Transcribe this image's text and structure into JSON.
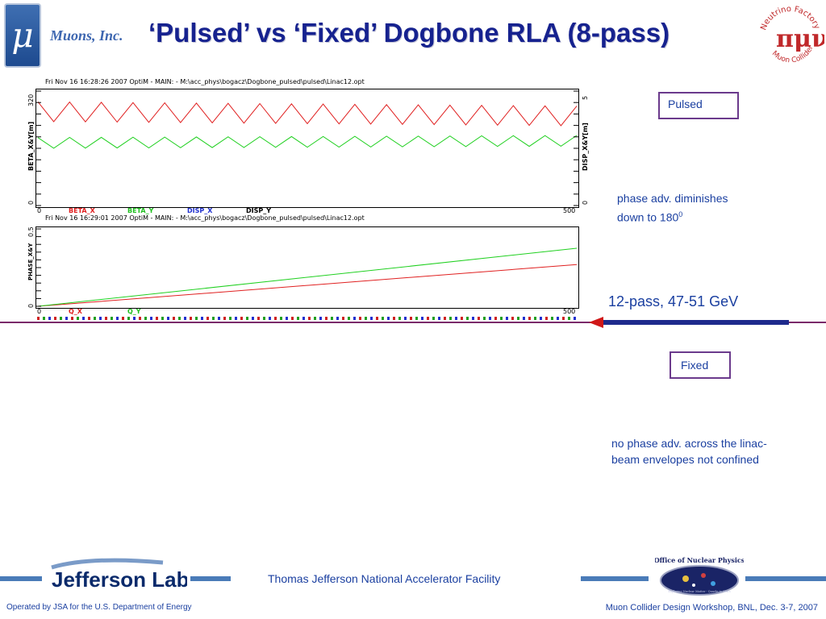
{
  "header": {
    "logo_glyph": "μ",
    "company": "Muons, Inc.",
    "title": "‘Pulsed’ vs ‘Fixed’ Dogbone RLA (8-pass)",
    "partner_logo": {
      "top_text": "Neutrino Factory",
      "bottom_text": "Muon Collider",
      "glyphs": "πμν"
    }
  },
  "plots": {
    "top": {
      "header": "Fri Nov 16 16:28:26 2007    OptiM - MAIN: - M:\\acc_phys\\bogacz\\Dogbone_pulsed\\pulsed\\Linac12.opt",
      "left_axis_label": "BETA_X&Y[m]",
      "right_axis_label": "DISP_X&Y[m]",
      "left_ticks": [
        "320",
        "0"
      ],
      "right_ticks": [
        "5",
        "0"
      ],
      "x_ticks": [
        "0",
        "500"
      ],
      "legend": [
        "BETA_X",
        "BETA_Y",
        "DISP_X",
        "DISP_Y"
      ]
    },
    "bottom": {
      "header": "Fri Nov 16 16:29:01 2007    OptiM - MAIN: - M:\\acc_phys\\bogacz\\Dogbone_pulsed\\pulsed\\Linac12.opt",
      "left_axis_label": "PHASE_X&Y",
      "left_ticks": [
        "0.5",
        "0"
      ],
      "x_ticks": [
        "0",
        "500"
      ],
      "legend": [
        "Q_X",
        "Q_Y"
      ]
    }
  },
  "chart_data": [
    {
      "type": "line",
      "x": [
        0,
        500
      ],
      "xlim": [
        0,
        500
      ],
      "ylim": [
        0,
        320
      ],
      "y2lim": [
        0,
        5
      ],
      "series": [
        {
          "name": "BETA_X",
          "color": "#e02020",
          "shape": "zigzag",
          "teeth": 17,
          "y_range": [
            235,
            290
          ],
          "trend": "slight-decrease"
        },
        {
          "name": "BETA_Y",
          "color": "#20d020",
          "shape": "zigzag",
          "teeth": 17,
          "y_range": [
            160,
            190
          ],
          "trend": "slight-increase"
        },
        {
          "name": "DISP_X",
          "color": "#2030d0"
        },
        {
          "name": "DISP_Y",
          "color": "#000000"
        }
      ],
      "grid": false
    },
    {
      "type": "line",
      "x": [
        0,
        500
      ],
      "xlim": [
        0,
        500
      ],
      "ylim": [
        0,
        0.5
      ],
      "series": [
        {
          "name": "Q_X",
          "color": "#e02020",
          "points": [
            [
              0,
              0
            ],
            [
              500,
              0.27
            ]
          ]
        },
        {
          "name": "Q_Y",
          "color": "#20d020",
          "points": [
            [
              0,
              0
            ],
            [
              500,
              0.375
            ]
          ]
        }
      ],
      "grid": false
    }
  ],
  "right_panel": {
    "pulsed_label": "Pulsed",
    "pulsed_note_line1": "phase adv. diminishes",
    "pulsed_note_line2": "down to 180",
    "pulsed_note_sup": "0",
    "pass_note": "12-pass, 47-51 GeV",
    "fixed_label": "Fixed",
    "fixed_note_line1": "no phase adv. across the linac-",
    "fixed_note_line2": "beam envelopes not confined"
  },
  "footer": {
    "lab_logo": "Jefferson Lab",
    "facility": "Thomas Jefferson National Accelerator Facility",
    "office_logo_top": "Office of Nuclear Physics",
    "office_logo_tagline": "Exploring Nuclear Matter - Quarks to Stars",
    "operated_by": "Operated by JSA for the U.S. Department of Energy",
    "workshop": "Muon Collider Design Workshop, BNL, Dec. 3-7, 2007"
  },
  "colors": {
    "title": "#16228f",
    "text_blue": "#1a3fa0",
    "box_border": "#6b3a8c",
    "separator": "#7a2a6a",
    "arrow": "#1e2a8c",
    "footer_line": "#4a7bb8"
  }
}
